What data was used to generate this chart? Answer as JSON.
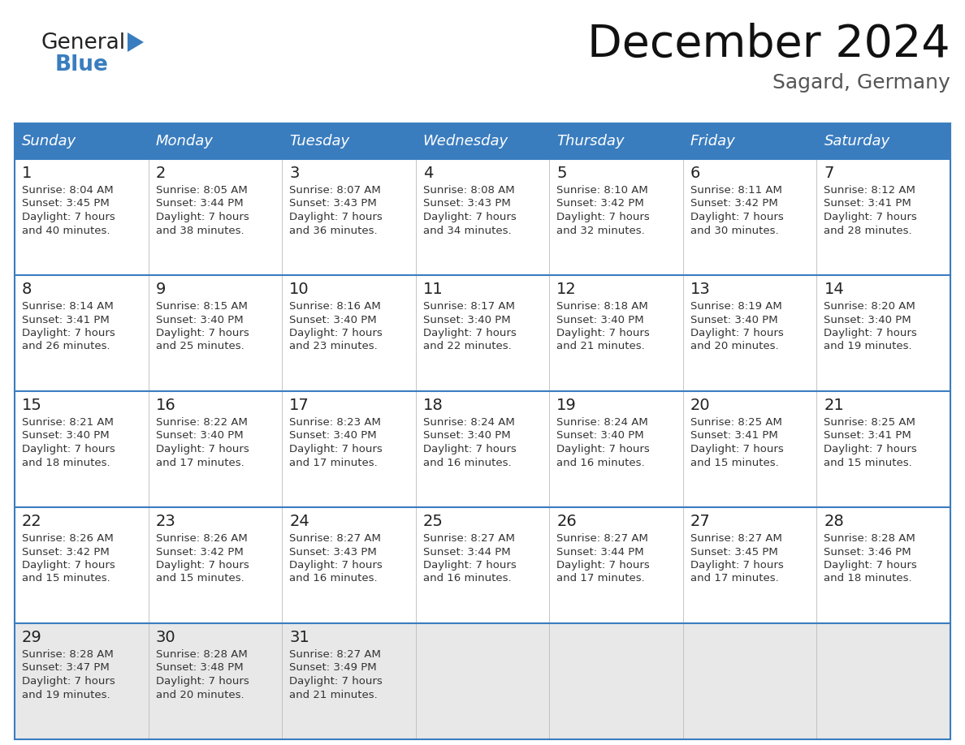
{
  "title": "December 2024",
  "subtitle": "Sagard, Germany",
  "header_bg": "#3a7dbf",
  "header_text_color": "#ffffff",
  "day_names": [
    "Sunday",
    "Monday",
    "Tuesday",
    "Wednesday",
    "Thursday",
    "Friday",
    "Saturday"
  ],
  "row_bg_colors": [
    "#ffffff",
    "#ffffff",
    "#ffffff",
    "#ffffff",
    "#e8e8e8"
  ],
  "grid_line_color": "#3a7dbf",
  "cell_divider_color": "#cccccc",
  "text_color": "#333333",
  "day_num_color": "#222222",
  "days": [
    {
      "day": 1,
      "col": 0,
      "row": 0,
      "sunrise": "8:04 AM",
      "sunset": "3:45 PM",
      "dl_hours": "7 hours",
      "dl_minutes": "40 minutes."
    },
    {
      "day": 2,
      "col": 1,
      "row": 0,
      "sunrise": "8:05 AM",
      "sunset": "3:44 PM",
      "dl_hours": "7 hours",
      "dl_minutes": "38 minutes."
    },
    {
      "day": 3,
      "col": 2,
      "row": 0,
      "sunrise": "8:07 AM",
      "sunset": "3:43 PM",
      "dl_hours": "7 hours",
      "dl_minutes": "36 minutes."
    },
    {
      "day": 4,
      "col": 3,
      "row": 0,
      "sunrise": "8:08 AM",
      "sunset": "3:43 PM",
      "dl_hours": "7 hours",
      "dl_minutes": "34 minutes."
    },
    {
      "day": 5,
      "col": 4,
      "row": 0,
      "sunrise": "8:10 AM",
      "sunset": "3:42 PM",
      "dl_hours": "7 hours",
      "dl_minutes": "32 minutes."
    },
    {
      "day": 6,
      "col": 5,
      "row": 0,
      "sunrise": "8:11 AM",
      "sunset": "3:42 PM",
      "dl_hours": "7 hours",
      "dl_minutes": "30 minutes."
    },
    {
      "day": 7,
      "col": 6,
      "row": 0,
      "sunrise": "8:12 AM",
      "sunset": "3:41 PM",
      "dl_hours": "7 hours",
      "dl_minutes": "28 minutes."
    },
    {
      "day": 8,
      "col": 0,
      "row": 1,
      "sunrise": "8:14 AM",
      "sunset": "3:41 PM",
      "dl_hours": "7 hours",
      "dl_minutes": "26 minutes."
    },
    {
      "day": 9,
      "col": 1,
      "row": 1,
      "sunrise": "8:15 AM",
      "sunset": "3:40 PM",
      "dl_hours": "7 hours",
      "dl_minutes": "25 minutes."
    },
    {
      "day": 10,
      "col": 2,
      "row": 1,
      "sunrise": "8:16 AM",
      "sunset": "3:40 PM",
      "dl_hours": "7 hours",
      "dl_minutes": "23 minutes."
    },
    {
      "day": 11,
      "col": 3,
      "row": 1,
      "sunrise": "8:17 AM",
      "sunset": "3:40 PM",
      "dl_hours": "7 hours",
      "dl_minutes": "22 minutes."
    },
    {
      "day": 12,
      "col": 4,
      "row": 1,
      "sunrise": "8:18 AM",
      "sunset": "3:40 PM",
      "dl_hours": "7 hours",
      "dl_minutes": "21 minutes."
    },
    {
      "day": 13,
      "col": 5,
      "row": 1,
      "sunrise": "8:19 AM",
      "sunset": "3:40 PM",
      "dl_hours": "7 hours",
      "dl_minutes": "20 minutes."
    },
    {
      "day": 14,
      "col": 6,
      "row": 1,
      "sunrise": "8:20 AM",
      "sunset": "3:40 PM",
      "dl_hours": "7 hours",
      "dl_minutes": "19 minutes."
    },
    {
      "day": 15,
      "col": 0,
      "row": 2,
      "sunrise": "8:21 AM",
      "sunset": "3:40 PM",
      "dl_hours": "7 hours",
      "dl_minutes": "18 minutes."
    },
    {
      "day": 16,
      "col": 1,
      "row": 2,
      "sunrise": "8:22 AM",
      "sunset": "3:40 PM",
      "dl_hours": "7 hours",
      "dl_minutes": "17 minutes."
    },
    {
      "day": 17,
      "col": 2,
      "row": 2,
      "sunrise": "8:23 AM",
      "sunset": "3:40 PM",
      "dl_hours": "7 hours",
      "dl_minutes": "17 minutes."
    },
    {
      "day": 18,
      "col": 3,
      "row": 2,
      "sunrise": "8:24 AM",
      "sunset": "3:40 PM",
      "dl_hours": "7 hours",
      "dl_minutes": "16 minutes."
    },
    {
      "day": 19,
      "col": 4,
      "row": 2,
      "sunrise": "8:24 AM",
      "sunset": "3:40 PM",
      "dl_hours": "7 hours",
      "dl_minutes": "16 minutes."
    },
    {
      "day": 20,
      "col": 5,
      "row": 2,
      "sunrise": "8:25 AM",
      "sunset": "3:41 PM",
      "dl_hours": "7 hours",
      "dl_minutes": "15 minutes."
    },
    {
      "day": 21,
      "col": 6,
      "row": 2,
      "sunrise": "8:25 AM",
      "sunset": "3:41 PM",
      "dl_hours": "7 hours",
      "dl_minutes": "15 minutes."
    },
    {
      "day": 22,
      "col": 0,
      "row": 3,
      "sunrise": "8:26 AM",
      "sunset": "3:42 PM",
      "dl_hours": "7 hours",
      "dl_minutes": "15 minutes."
    },
    {
      "day": 23,
      "col": 1,
      "row": 3,
      "sunrise": "8:26 AM",
      "sunset": "3:42 PM",
      "dl_hours": "7 hours",
      "dl_minutes": "15 minutes."
    },
    {
      "day": 24,
      "col": 2,
      "row": 3,
      "sunrise": "8:27 AM",
      "sunset": "3:43 PM",
      "dl_hours": "7 hours",
      "dl_minutes": "16 minutes."
    },
    {
      "day": 25,
      "col": 3,
      "row": 3,
      "sunrise": "8:27 AM",
      "sunset": "3:44 PM",
      "dl_hours": "7 hours",
      "dl_minutes": "16 minutes."
    },
    {
      "day": 26,
      "col": 4,
      "row": 3,
      "sunrise": "8:27 AM",
      "sunset": "3:44 PM",
      "dl_hours": "7 hours",
      "dl_minutes": "17 minutes."
    },
    {
      "day": 27,
      "col": 5,
      "row": 3,
      "sunrise": "8:27 AM",
      "sunset": "3:45 PM",
      "dl_hours": "7 hours",
      "dl_minutes": "17 minutes."
    },
    {
      "day": 28,
      "col": 6,
      "row": 3,
      "sunrise": "8:28 AM",
      "sunset": "3:46 PM",
      "dl_hours": "7 hours",
      "dl_minutes": "18 minutes."
    },
    {
      "day": 29,
      "col": 0,
      "row": 4,
      "sunrise": "8:28 AM",
      "sunset": "3:47 PM",
      "dl_hours": "7 hours",
      "dl_minutes": "19 minutes."
    },
    {
      "day": 30,
      "col": 1,
      "row": 4,
      "sunrise": "8:28 AM",
      "sunset": "3:48 PM",
      "dl_hours": "7 hours",
      "dl_minutes": "20 minutes."
    },
    {
      "day": 31,
      "col": 2,
      "row": 4,
      "sunrise": "8:27 AM",
      "sunset": "3:49 PM",
      "dl_hours": "7 hours",
      "dl_minutes": "21 minutes."
    }
  ],
  "num_rows": 5,
  "logo_color_general": "#222222",
  "logo_color_blue": "#3a7dbf",
  "logo_triangle_color": "#3a7dbf"
}
